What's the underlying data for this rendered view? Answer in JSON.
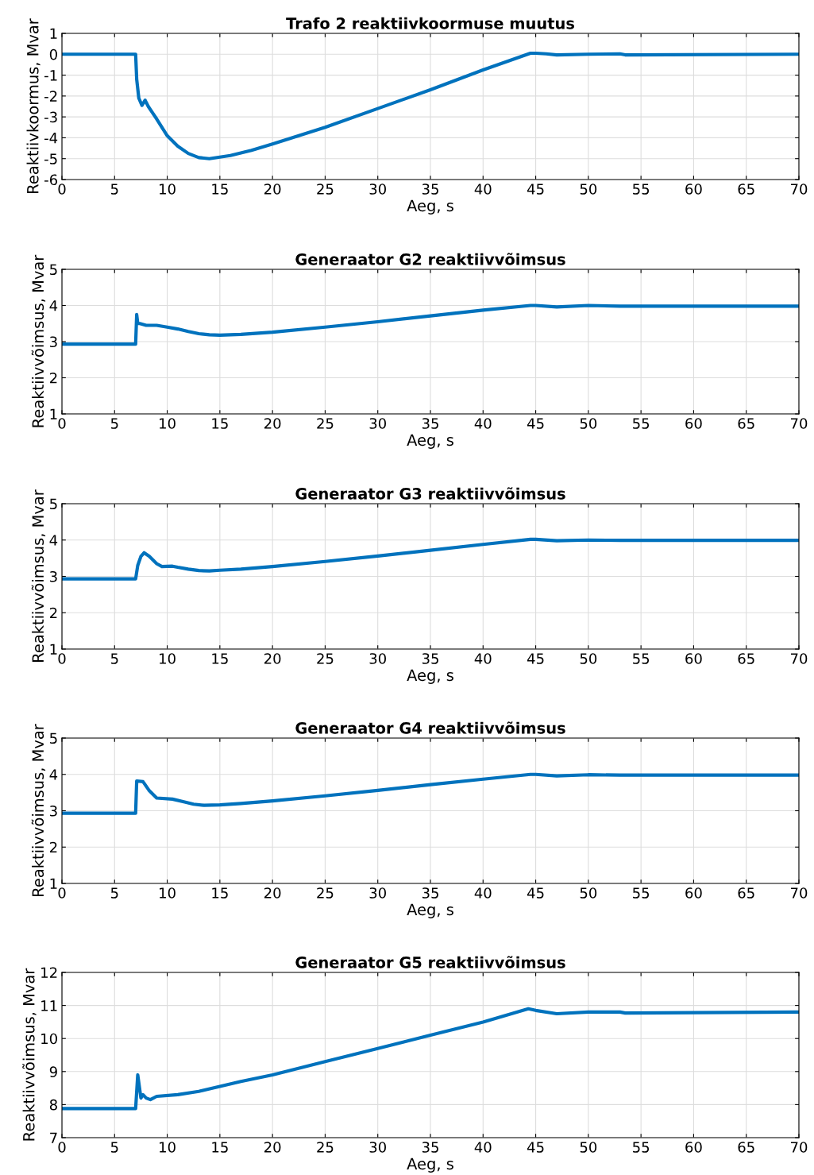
{
  "chart_data": [
    {
      "type": "line",
      "title": "Trafo 2 reaktiivkoormuse muutus",
      "xlabel": "Aeg, s",
      "ylabel": "Reaktiivkoormus, Mvar",
      "xlim": [
        0,
        70
      ],
      "xticks": [
        0,
        5,
        10,
        15,
        20,
        25,
        30,
        35,
        40,
        45,
        50,
        55,
        60,
        65,
        70
      ],
      "ylim": [
        -6,
        1
      ],
      "yticks": [
        -6,
        -5,
        -4,
        -3,
        -2,
        -1,
        0,
        1
      ],
      "grid": true,
      "series": [
        {
          "color": "#0072bd",
          "x": [
            0,
            7,
            7.1,
            7.3,
            7.6,
            7.9,
            8.2,
            8.6,
            9,
            10,
            11,
            12,
            13,
            14,
            16,
            18,
            20,
            25,
            30,
            35,
            40,
            44.5,
            45,
            46,
            47,
            50,
            53,
            53.5,
            70
          ],
          "values": [
            0,
            0,
            -1.2,
            -2.1,
            -2.45,
            -2.2,
            -2.5,
            -2.8,
            -3.1,
            -3.9,
            -4.4,
            -4.75,
            -4.95,
            -5,
            -4.85,
            -4.6,
            -4.3,
            -3.5,
            -2.6,
            -1.7,
            -0.75,
            0.05,
            0.05,
            0.02,
            -0.03,
            0,
            0.02,
            -0.03,
            0
          ]
        }
      ]
    },
    {
      "type": "line",
      "title": "Generaator G2 reaktiivvõimsus",
      "xlabel": "Aeg, s",
      "ylabel": "Reaktiivvõimsus, Mvar",
      "xlim": [
        0,
        70
      ],
      "xticks": [
        0,
        5,
        10,
        15,
        20,
        25,
        30,
        35,
        40,
        45,
        50,
        55,
        60,
        65,
        70
      ],
      "ylim": [
        1,
        5
      ],
      "yticks": [
        1,
        2,
        3,
        4,
        5
      ],
      "grid": true,
      "series": [
        {
          "color": "#0072bd",
          "x": [
            0,
            7,
            7.1,
            7.2,
            7.4,
            8,
            9,
            10,
            11,
            12,
            13,
            14,
            15,
            17,
            20,
            25,
            30,
            35,
            40,
            44.5,
            45,
            47,
            50,
            53,
            70
          ],
          "values": [
            2.93,
            2.93,
            3.75,
            3.5,
            3.5,
            3.45,
            3.45,
            3.4,
            3.35,
            3.28,
            3.22,
            3.19,
            3.18,
            3.2,
            3.26,
            3.4,
            3.55,
            3.71,
            3.87,
            4.0,
            4.0,
            3.96,
            4.0,
            3.98,
            3.98
          ]
        }
      ]
    },
    {
      "type": "line",
      "title": "Generaator G3 reaktiivvõimsus",
      "xlabel": "Aeg, s",
      "ylabel": "Reaktiivvõimsus, Mvar",
      "xlim": [
        0,
        70
      ],
      "xticks": [
        0,
        5,
        10,
        15,
        20,
        25,
        30,
        35,
        40,
        45,
        50,
        55,
        60,
        65,
        70
      ],
      "ylim": [
        1,
        5
      ],
      "yticks": [
        1,
        2,
        3,
        4,
        5
      ],
      "grid": true,
      "series": [
        {
          "color": "#0072bd",
          "x": [
            0,
            7,
            7.2,
            7.5,
            7.8,
            8.3,
            9,
            9.5,
            10.5,
            11,
            12,
            13,
            14,
            15,
            17,
            20,
            25,
            30,
            35,
            40,
            44.5,
            45,
            47,
            50,
            53,
            70
          ],
          "values": [
            2.93,
            2.93,
            3.3,
            3.55,
            3.65,
            3.55,
            3.35,
            3.27,
            3.28,
            3.25,
            3.2,
            3.16,
            3.15,
            3.17,
            3.2,
            3.27,
            3.41,
            3.56,
            3.72,
            3.88,
            4.02,
            4.02,
            3.98,
            4.0,
            3.99,
            3.99
          ]
        }
      ]
    },
    {
      "type": "line",
      "title": "Generaator G4 reaktiivvõimsus",
      "xlabel": "Aeg, s",
      "ylabel": "Reaktiivvõimsus, Mvar",
      "xlim": [
        0,
        70
      ],
      "xticks": [
        0,
        5,
        10,
        15,
        20,
        25,
        30,
        35,
        40,
        45,
        50,
        55,
        60,
        65,
        70
      ],
      "ylim": [
        1,
        5
      ],
      "yticks": [
        1,
        2,
        3,
        4,
        5
      ],
      "grid": true,
      "series": [
        {
          "color": "#0072bd",
          "x": [
            0,
            7,
            7.1,
            7.7,
            8.3,
            9,
            10.5,
            11.5,
            12.5,
            13.5,
            15,
            17,
            20,
            25,
            30,
            35,
            40,
            44.5,
            45,
            47,
            50,
            53,
            70
          ],
          "values": [
            2.93,
            2.93,
            3.82,
            3.8,
            3.55,
            3.35,
            3.32,
            3.25,
            3.18,
            3.15,
            3.16,
            3.2,
            3.27,
            3.41,
            3.56,
            3.72,
            3.87,
            4.0,
            4.0,
            3.96,
            3.99,
            3.98,
            3.98
          ]
        }
      ]
    },
    {
      "type": "line",
      "title": "Generaator G5 reaktiivvõimsus",
      "xlabel": "Aeg, s",
      "ylabel": "Reaktiivvõimsus, Mvar",
      "xlim": [
        0,
        70
      ],
      "xticks": [
        0,
        5,
        10,
        15,
        20,
        25,
        30,
        35,
        40,
        45,
        50,
        55,
        60,
        65,
        70
      ],
      "ylim": [
        7,
        12
      ],
      "yticks": [
        7,
        8,
        9,
        10,
        11,
        12
      ],
      "grid": true,
      "series": [
        {
          "color": "#0072bd",
          "x": [
            0,
            7,
            7.2,
            7.5,
            7.7,
            8,
            8.4,
            9,
            11,
            13,
            15,
            17,
            20,
            25,
            30,
            35,
            40,
            44.3,
            45,
            47,
            50,
            53,
            53.5,
            70
          ],
          "values": [
            7.88,
            7.88,
            8.9,
            8.2,
            8.3,
            8.2,
            8.15,
            8.25,
            8.3,
            8.4,
            8.55,
            8.7,
            8.9,
            9.3,
            9.7,
            10.1,
            10.5,
            10.9,
            10.85,
            10.75,
            10.8,
            10.8,
            10.77,
            10.8
          ]
        }
      ]
    }
  ]
}
